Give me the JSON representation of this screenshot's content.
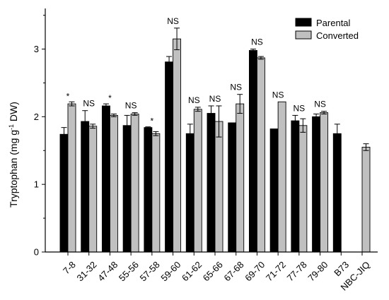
{
  "chart_data": {
    "type": "bar",
    "title": "",
    "xlabel": "",
    "ylabel": {
      "main": "Tryptophan (mg g",
      "sup": "-1",
      "tail": " DW)"
    },
    "ylim": [
      0,
      3.6
    ],
    "yticks": [
      "0",
      "1",
      "2",
      "3"
    ],
    "categories": [
      "7-8",
      "31-32",
      "47-48",
      "55-56",
      "57-58",
      "59-60",
      "61-62",
      "65-66",
      "67-68",
      "69-70",
      "71-72",
      "77-78",
      "79-80",
      "B73",
      "NBC-JIQ"
    ],
    "series": [
      {
        "name": "Parental",
        "color": "#000000",
        "values": [
          1.74,
          1.93,
          2.16,
          1.87,
          1.84,
          2.81,
          1.75,
          2.05,
          1.91,
          2.98,
          1.82,
          1.94,
          2.0,
          1.75,
          null
        ],
        "errors": [
          0.1,
          0.16,
          0.03,
          0.15,
          0.01,
          0.08,
          0.14,
          0.11,
          0.0,
          0.02,
          0.0,
          0.08,
          0.04,
          0.14,
          null
        ]
      },
      {
        "name": "Converted",
        "color": "#c0c0c0",
        "values": [
          2.19,
          1.86,
          2.02,
          2.04,
          1.75,
          3.15,
          2.11,
          1.93,
          2.19,
          2.87,
          2.22,
          1.87,
          2.06,
          null,
          1.55
        ],
        "errors": [
          0.03,
          0.03,
          0.02,
          0.02,
          0.03,
          0.16,
          0.03,
          0.23,
          0.14,
          0.02,
          0.0,
          0.1,
          0.02,
          null,
          0.05
        ]
      }
    ],
    "significance": [
      "*",
      "NS",
      "*",
      "NS",
      "*",
      "NS",
      "NS",
      "NS",
      "NS",
      "NS",
      "NS",
      "NS",
      "NS",
      "",
      ""
    ],
    "legend": {
      "placement": "top-right"
    },
    "grid": false
  }
}
